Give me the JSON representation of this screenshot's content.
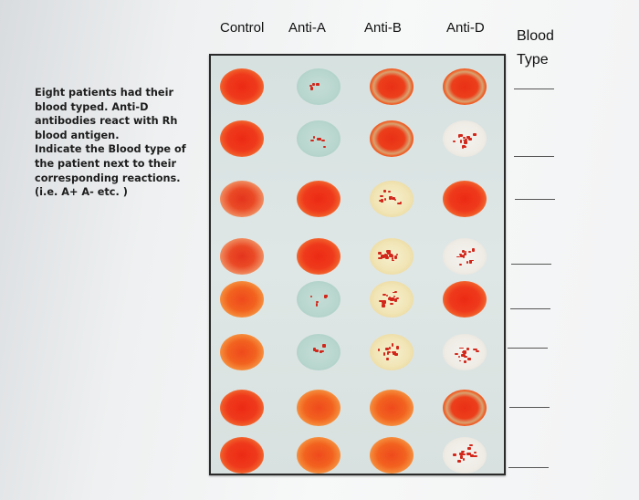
{
  "header": {
    "columns": [
      "Control",
      "Anti-A",
      "Anti-B",
      "Anti-D"
    ],
    "blood_type_label": [
      "Blood",
      "Type"
    ]
  },
  "instructions": [
    "Eight patients had their",
    "blood typed. Anti-D",
    "antibodies react with Rh",
    "blood antigen.",
    "Indicate the Blood type of",
    "the patient next to their",
    "corresponding reactions.",
    "(i.e. A+ A- etc. )"
  ],
  "plate": {
    "rows": [
      [
        "solid",
        "clump-teal",
        "ring",
        "ring"
      ],
      [
        "solid",
        "clump-teal",
        "ring",
        "clump-white"
      ],
      [
        "soft",
        "solid",
        "clump-cream",
        "solid"
      ],
      [
        "soft",
        "solid",
        "clump-cream",
        "clump-white"
      ],
      [
        "solid-orange",
        "clump-teal",
        "clump-cream",
        "solid"
      ],
      [
        "solid-orange",
        "clump-teal",
        "clump-cream",
        "clump-white"
      ],
      [
        "solid",
        "solid-orange",
        "solid-orange",
        "ring"
      ],
      [
        "solid",
        "solid-orange",
        "solid-orange",
        "clump-white"
      ]
    ]
  },
  "colors": {
    "agglutinated_red": "#d2261a",
    "teal_reagent": "#b8d6ce",
    "cream_reagent": "#f1e5b6"
  }
}
